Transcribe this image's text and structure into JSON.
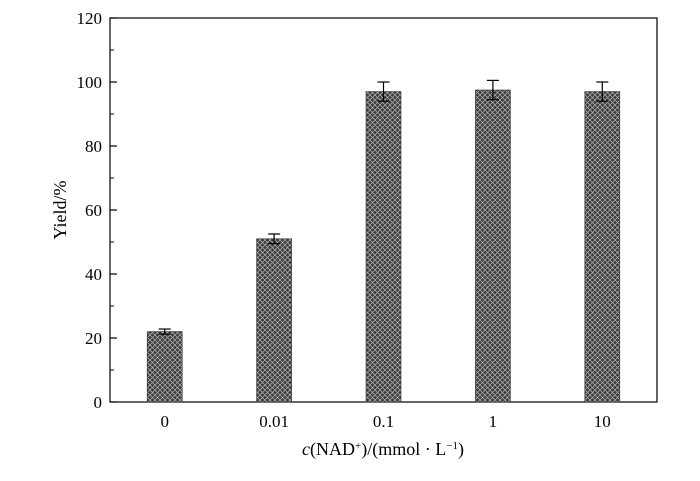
{
  "chart_data": {
    "type": "bar",
    "categories": [
      "0",
      "0.01",
      "0.1",
      "1",
      "10"
    ],
    "values": [
      22,
      51,
      97,
      97.5,
      97
    ],
    "errors": [
      0.8,
      1.5,
      3,
      3,
      3
    ],
    "xlabel": {
      "italic": "c",
      "pre": "(NAD",
      "sup1": "+",
      "mid": ")/(mmol · L",
      "sup2": "−1",
      "post": ")"
    },
    "ylabel": "Yield/%",
    "ylim": [
      0,
      120
    ],
    "yticks": [
      0,
      20,
      40,
      60,
      80,
      100,
      120
    ],
    "grid": false,
    "legend": "none",
    "bar_fill_pattern": "crosshatch",
    "colors": {
      "bar": "#3d3d3d",
      "hatch": "#bdbdbd",
      "axis": "#000000"
    }
  }
}
